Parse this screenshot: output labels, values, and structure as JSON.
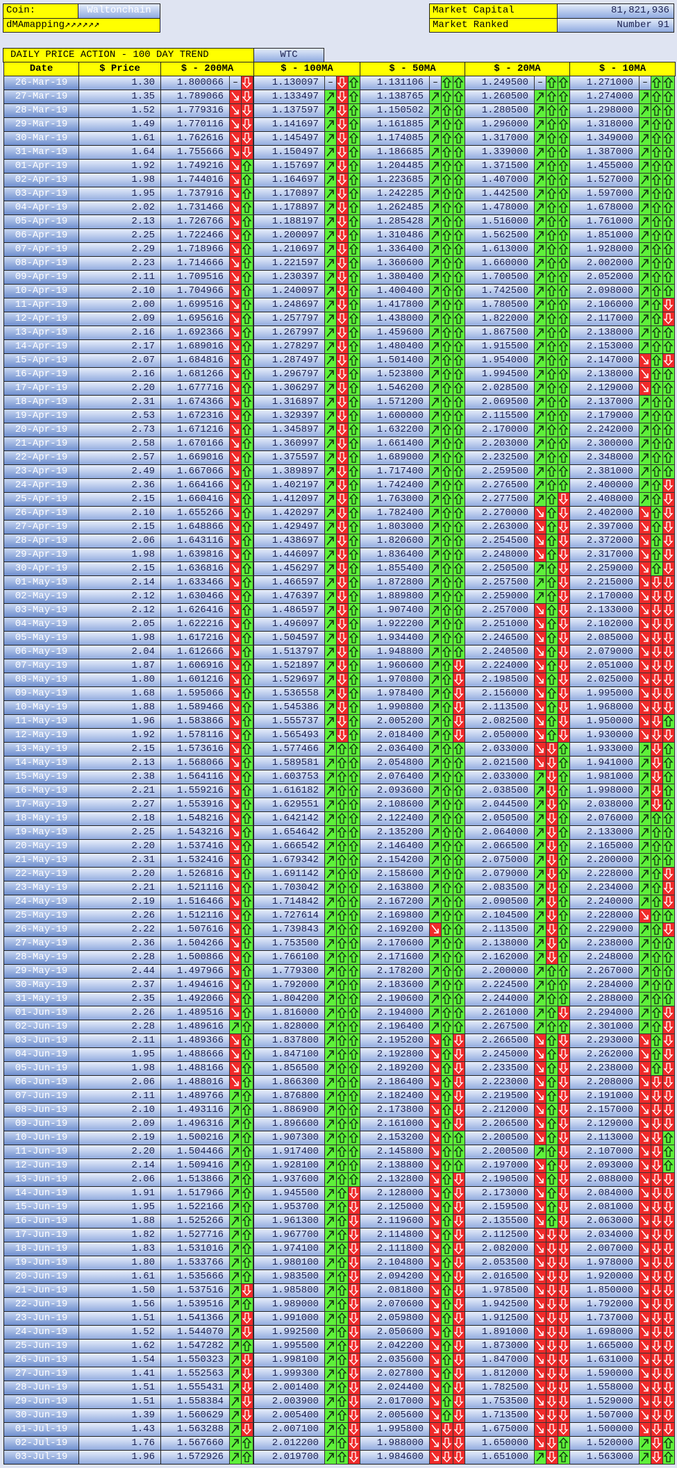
{
  "header": {
    "coin_label": "Coin:",
    "coin": "Waltonchain",
    "mapping": "dMAmapping↗↗↗↗↗↗",
    "market_cap_label": "Market Capital",
    "market_cap": "81,821,936",
    "rank_label": "Market Ranked",
    "rank": "Number 91"
  },
  "table": {
    "title": "DAILY PRICE ACTION - 100 DAY TREND",
    "symbol": "WTC",
    "columns": [
      "Date",
      "$ Price",
      "$ - 200MA",
      "$ - 100MA",
      "$ - 50MA",
      "$ - 20MA",
      "$ - 10MA"
    ],
    "no_trend_mark": "–",
    "rows": [
      [
        "26-Mar-19",
        "1.30",
        "1.800066",
        "1.130097",
        "1.131106",
        "1.249500",
        "1.271000"
      ],
      [
        "27-Mar-19",
        "1.35",
        "1.789066",
        "1.133497",
        "1.138765",
        "1.260500",
        "1.274000"
      ],
      [
        "28-Mar-19",
        "1.52",
        "1.779316",
        "1.137597",
        "1.150502",
        "1.280500",
        "1.298000"
      ],
      [
        "29-Mar-19",
        "1.49",
        "1.770116",
        "1.141697",
        "1.161885",
        "1.296000",
        "1.318000"
      ],
      [
        "30-Mar-19",
        "1.61",
        "1.762616",
        "1.145497",
        "1.174085",
        "1.317000",
        "1.349000"
      ],
      [
        "31-Mar-19",
        "1.64",
        "1.755666",
        "1.150497",
        "1.186685",
        "1.339000",
        "1.387000"
      ],
      [
        "01-Apr-19",
        "1.92",
        "1.749216",
        "1.157697",
        "1.204485",
        "1.371500",
        "1.455000"
      ],
      [
        "02-Apr-19",
        "1.98",
        "1.744016",
        "1.164697",
        "1.223685",
        "1.407000",
        "1.527000"
      ],
      [
        "03-Apr-19",
        "1.95",
        "1.737916",
        "1.170897",
        "1.242285",
        "1.442500",
        "1.597000"
      ],
      [
        "04-Apr-19",
        "2.02",
        "1.731466",
        "1.178897",
        "1.262485",
        "1.478000",
        "1.678000"
      ],
      [
        "05-Apr-19",
        "2.13",
        "1.726766",
        "1.188197",
        "1.285428",
        "1.516000",
        "1.761000"
      ],
      [
        "06-Apr-19",
        "2.25",
        "1.722466",
        "1.200097",
        "1.310486",
        "1.562500",
        "1.851000"
      ],
      [
        "07-Apr-19",
        "2.29",
        "1.718966",
        "1.210697",
        "1.336400",
        "1.613000",
        "1.928000"
      ],
      [
        "08-Apr-19",
        "2.23",
        "1.714666",
        "1.221597",
        "1.360600",
        "1.660000",
        "2.002000"
      ],
      [
        "09-Apr-19",
        "2.11",
        "1.709516",
        "1.230397",
        "1.380400",
        "1.700500",
        "2.052000"
      ],
      [
        "10-Apr-19",
        "2.10",
        "1.704966",
        "1.240097",
        "1.400400",
        "1.742500",
        "2.098000"
      ],
      [
        "11-Apr-19",
        "2.00",
        "1.699516",
        "1.248697",
        "1.417800",
        "1.780500",
        "2.106000"
      ],
      [
        "12-Apr-19",
        "2.09",
        "1.695616",
        "1.257797",
        "1.438000",
        "1.822000",
        "2.117000"
      ],
      [
        "13-Apr-19",
        "2.16",
        "1.692366",
        "1.267997",
        "1.459600",
        "1.867500",
        "2.138000"
      ],
      [
        "14-Apr-19",
        "2.17",
        "1.689016",
        "1.278297",
        "1.480400",
        "1.915500",
        "2.153000"
      ],
      [
        "15-Apr-19",
        "2.07",
        "1.684816",
        "1.287497",
        "1.501400",
        "1.954000",
        "2.147000"
      ],
      [
        "16-Apr-19",
        "2.16",
        "1.681266",
        "1.296797",
        "1.523800",
        "1.994500",
        "2.138000"
      ],
      [
        "17-Apr-19",
        "2.20",
        "1.677716",
        "1.306297",
        "1.546200",
        "2.028500",
        "2.129000"
      ],
      [
        "18-Apr-19",
        "2.31",
        "1.674366",
        "1.316897",
        "1.571200",
        "2.069500",
        "2.137000"
      ],
      [
        "19-Apr-19",
        "2.53",
        "1.672316",
        "1.329397",
        "1.600000",
        "2.115500",
        "2.179000"
      ],
      [
        "20-Apr-19",
        "2.73",
        "1.671216",
        "1.345897",
        "1.632200",
        "2.170000",
        "2.242000"
      ],
      [
        "21-Apr-19",
        "2.58",
        "1.670166",
        "1.360997",
        "1.661400",
        "2.203000",
        "2.300000"
      ],
      [
        "22-Apr-19",
        "2.57",
        "1.669016",
        "1.375597",
        "1.689000",
        "2.232500",
        "2.348000"
      ],
      [
        "23-Apr-19",
        "2.49",
        "1.667066",
        "1.389897",
        "1.717400",
        "2.259500",
        "2.381000"
      ],
      [
        "24-Apr-19",
        "2.36",
        "1.664166",
        "1.402197",
        "1.742400",
        "2.276500",
        "2.400000"
      ],
      [
        "25-Apr-19",
        "2.15",
        "1.660416",
        "1.412097",
        "1.763000",
        "2.277500",
        "2.408000"
      ],
      [
        "26-Apr-19",
        "2.10",
        "1.655266",
        "1.420297",
        "1.782400",
        "2.270000",
        "2.402000"
      ],
      [
        "27-Apr-19",
        "2.15",
        "1.648866",
        "1.429497",
        "1.803000",
        "2.263000",
        "2.397000"
      ],
      [
        "28-Apr-19",
        "2.06",
        "1.643116",
        "1.438697",
        "1.820600",
        "2.254500",
        "2.372000"
      ],
      [
        "29-Apr-19",
        "1.98",
        "1.639816",
        "1.446097",
        "1.836400",
        "2.248000",
        "2.317000"
      ],
      [
        "30-Apr-19",
        "2.15",
        "1.636816",
        "1.456297",
        "1.855400",
        "2.250500",
        "2.259000"
      ],
      [
        "01-May-19",
        "2.14",
        "1.633466",
        "1.466597",
        "1.872800",
        "2.257500",
        "2.215000"
      ],
      [
        "02-May-19",
        "2.12",
        "1.630466",
        "1.476397",
        "1.889800",
        "2.259000",
        "2.170000"
      ],
      [
        "03-May-19",
        "2.12",
        "1.626416",
        "1.486597",
        "1.907400",
        "2.257000",
        "2.133000"
      ],
      [
        "04-May-19",
        "2.05",
        "1.622216",
        "1.496097",
        "1.922200",
        "2.251000",
        "2.102000"
      ],
      [
        "05-May-19",
        "1.98",
        "1.617216",
        "1.504597",
        "1.934400",
        "2.246500",
        "2.085000"
      ],
      [
        "06-May-19",
        "2.04",
        "1.612666",
        "1.513797",
        "1.948800",
        "2.240500",
        "2.079000"
      ],
      [
        "07-May-19",
        "1.87",
        "1.606916",
        "1.521897",
        "1.960600",
        "2.224000",
        "2.051000"
      ],
      [
        "08-May-19",
        "1.80",
        "1.601216",
        "1.529697",
        "1.970800",
        "2.198500",
        "2.025000"
      ],
      [
        "09-May-19",
        "1.68",
        "1.595066",
        "1.536558",
        "1.978400",
        "2.156000",
        "1.995000"
      ],
      [
        "10-May-19",
        "1.88",
        "1.589466",
        "1.545386",
        "1.990800",
        "2.113500",
        "1.968000"
      ],
      [
        "11-May-19",
        "1.96",
        "1.583866",
        "1.555737",
        "2.005200",
        "2.082500",
        "1.950000"
      ],
      [
        "12-May-19",
        "1.92",
        "1.578116",
        "1.565493",
        "2.018400",
        "2.050000",
        "1.930000"
      ],
      [
        "13-May-19",
        "2.15",
        "1.573616",
        "1.577466",
        "2.036400",
        "2.033000",
        "1.933000"
      ],
      [
        "14-May-19",
        "2.13",
        "1.568066",
        "1.589581",
        "2.054800",
        "2.021500",
        "1.941000"
      ],
      [
        "15-May-19",
        "2.38",
        "1.564116",
        "1.603753",
        "2.076400",
        "2.033000",
        "1.981000"
      ],
      [
        "16-May-19",
        "2.21",
        "1.559216",
        "1.616182",
        "2.093600",
        "2.038500",
        "1.998000"
      ],
      [
        "17-May-19",
        "2.27",
        "1.553916",
        "1.629551",
        "2.108600",
        "2.044500",
        "2.038000"
      ],
      [
        "18-May-19",
        "2.18",
        "1.548216",
        "1.642142",
        "2.122400",
        "2.050500",
        "2.076000"
      ],
      [
        "19-May-19",
        "2.25",
        "1.543216",
        "1.654642",
        "2.135200",
        "2.064000",
        "2.133000"
      ],
      [
        "20-May-19",
        "2.20",
        "1.537416",
        "1.666542",
        "2.146400",
        "2.066500",
        "2.165000"
      ],
      [
        "21-May-19",
        "2.31",
        "1.532416",
        "1.679342",
        "2.154200",
        "2.075000",
        "2.200000"
      ],
      [
        "22-May-19",
        "2.20",
        "1.526816",
        "1.691142",
        "2.158600",
        "2.079000",
        "2.228000"
      ],
      [
        "23-May-19",
        "2.21",
        "1.521116",
        "1.703042",
        "2.163800",
        "2.083500",
        "2.234000"
      ],
      [
        "24-May-19",
        "2.19",
        "1.516466",
        "1.714842",
        "2.167200",
        "2.090500",
        "2.240000"
      ],
      [
        "25-May-19",
        "2.26",
        "1.512116",
        "1.727614",
        "2.169800",
        "2.104500",
        "2.228000"
      ],
      [
        "26-May-19",
        "2.22",
        "1.507616",
        "1.739843",
        "2.169200",
        "2.113500",
        "2.229000"
      ],
      [
        "27-May-19",
        "2.36",
        "1.504266",
        "1.753500",
        "2.170600",
        "2.138000",
        "2.238000"
      ],
      [
        "28-May-19",
        "2.28",
        "1.500866",
        "1.766100",
        "2.171600",
        "2.162000",
        "2.248000"
      ],
      [
        "29-May-19",
        "2.44",
        "1.497966",
        "1.779300",
        "2.178200",
        "2.200000",
        "2.267000"
      ],
      [
        "30-May-19",
        "2.37",
        "1.494616",
        "1.792000",
        "2.183600",
        "2.224500",
        "2.284000"
      ],
      [
        "31-May-19",
        "2.35",
        "1.492066",
        "1.804200",
        "2.190600",
        "2.244000",
        "2.288000"
      ],
      [
        "01-Jun-19",
        "2.26",
        "1.489516",
        "1.816000",
        "2.194000",
        "2.261000",
        "2.294000"
      ],
      [
        "02-Jun-19",
        "2.28",
        "1.489616",
        "1.828000",
        "2.196400",
        "2.267500",
        "2.301000"
      ],
      [
        "03-Jun-19",
        "2.11",
        "1.489366",
        "1.837800",
        "2.195200",
        "2.266500",
        "2.293000"
      ],
      [
        "04-Jun-19",
        "1.95",
        "1.488666",
        "1.847100",
        "2.192800",
        "2.245000",
        "2.262000"
      ],
      [
        "05-Jun-19",
        "1.98",
        "1.488166",
        "1.856500",
        "2.189200",
        "2.233500",
        "2.238000"
      ],
      [
        "06-Jun-19",
        "2.06",
        "1.488016",
        "1.866300",
        "2.186400",
        "2.223000",
        "2.208000"
      ],
      [
        "07-Jun-19",
        "2.11",
        "1.489766",
        "1.876800",
        "2.182400",
        "2.219500",
        "2.191000"
      ],
      [
        "08-Jun-19",
        "2.10",
        "1.493116",
        "1.886900",
        "2.173800",
        "2.212000",
        "2.157000"
      ],
      [
        "09-Jun-19",
        "2.09",
        "1.496316",
        "1.896600",
        "2.161000",
        "2.206500",
        "2.129000"
      ],
      [
        "10-Jun-19",
        "2.19",
        "1.500216",
        "1.907300",
        "2.153200",
        "2.200500",
        "2.113000"
      ],
      [
        "11-Jun-19",
        "2.20",
        "1.504466",
        "1.917400",
        "2.145800",
        "2.200500",
        "2.107000"
      ],
      [
        "12-Jun-19",
        "2.14",
        "1.509416",
        "1.928100",
        "2.138800",
        "2.197000",
        "2.093000"
      ],
      [
        "13-Jun-19",
        "2.06",
        "1.513866",
        "1.937600",
        "2.132800",
        "2.190500",
        "2.088000"
      ],
      [
        "14-Jun-19",
        "1.91",
        "1.517966",
        "1.945500",
        "2.128000",
        "2.173000",
        "2.084000"
      ],
      [
        "15-Jun-19",
        "1.95",
        "1.522166",
        "1.953700",
        "2.125000",
        "2.159500",
        "2.081000"
      ],
      [
        "16-Jun-19",
        "1.88",
        "1.525266",
        "1.961300",
        "2.119600",
        "2.135500",
        "2.063000"
      ],
      [
        "17-Jun-19",
        "1.82",
        "1.527716",
        "1.967700",
        "2.114800",
        "2.112500",
        "2.034000"
      ],
      [
        "18-Jun-19",
        "1.83",
        "1.531016",
        "1.974100",
        "2.111800",
        "2.082000",
        "2.007000"
      ],
      [
        "19-Jun-19",
        "1.80",
        "1.533766",
        "1.980100",
        "2.104800",
        "2.053500",
        "1.978000"
      ],
      [
        "20-Jun-19",
        "1.61",
        "1.535666",
        "1.983500",
        "2.094200",
        "2.016500",
        "1.920000"
      ],
      [
        "21-Jun-19",
        "1.50",
        "1.537516",
        "1.985800",
        "2.081800",
        "1.978500",
        "1.850000"
      ],
      [
        "22-Jun-19",
        "1.56",
        "1.539516",
        "1.989000",
        "2.070600",
        "1.942500",
        "1.792000"
      ],
      [
        "23-Jun-19",
        "1.51",
        "1.541366",
        "1.991000",
        "2.059800",
        "1.912500",
        "1.737000"
      ],
      [
        "24-Jun-19",
        "1.52",
        "1.544070",
        "1.992500",
        "2.050600",
        "1.891000",
        "1.698000"
      ],
      [
        "25-Jun-19",
        "1.62",
        "1.547282",
        "1.995500",
        "2.042200",
        "1.873000",
        "1.665000"
      ],
      [
        "26-Jun-19",
        "1.54",
        "1.550323",
        "1.998100",
        "2.035600",
        "1.847000",
        "1.631000"
      ],
      [
        "27-Jun-19",
        "1.41",
        "1.552563",
        "1.999300",
        "2.027800",
        "1.812000",
        "1.590000"
      ],
      [
        "28-Jun-19",
        "1.51",
        "1.555431",
        "2.001400",
        "2.024400",
        "1.782500",
        "1.558000"
      ],
      [
        "29-Jun-19",
        "1.51",
        "1.558384",
        "2.003900",
        "2.017000",
        "1.753500",
        "1.529000"
      ],
      [
        "30-Jun-19",
        "1.39",
        "1.560629",
        "2.005400",
        "2.005600",
        "1.713500",
        "1.507000"
      ],
      [
        "01-Jul-19",
        "1.43",
        "1.563288",
        "2.007100",
        "1.995800",
        "1.675000",
        "1.500000"
      ],
      [
        "02-Jul-19",
        "1.76",
        "1.567660",
        "2.012200",
        "1.988000",
        "1.650000",
        "1.520000"
      ],
      [
        "03-Jul-19",
        "1.96",
        "1.572926",
        "2.019700",
        "1.984600",
        "1.651000",
        "1.563000"
      ]
    ]
  }
}
